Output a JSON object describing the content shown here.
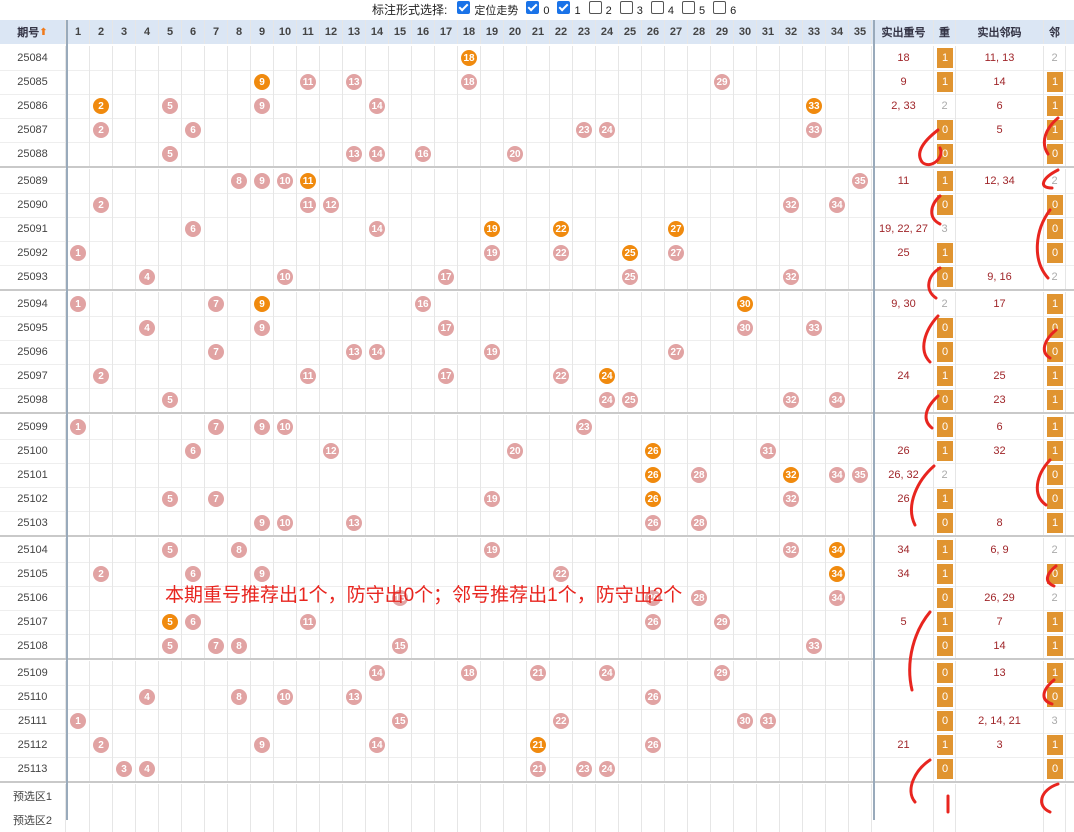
{
  "toolbar": {
    "title": "标注形式选择:",
    "options": [
      {
        "label": "定位走势",
        "checked": true
      },
      {
        "label": "0",
        "checked": true
      },
      {
        "label": "1",
        "checked": true
      },
      {
        "label": "2",
        "checked": false
      },
      {
        "label": "3",
        "checked": false
      },
      {
        "label": "4",
        "checked": false
      },
      {
        "label": "5",
        "checked": false
      },
      {
        "label": "6",
        "checked": false
      }
    ]
  },
  "header": {
    "period": "期号",
    "sort_icon": "sort-arrow-icon",
    "numbers": [
      "1",
      "2",
      "3",
      "4",
      "5",
      "6",
      "7",
      "8",
      "9",
      "10",
      "11",
      "12",
      "13",
      "14",
      "15",
      "16",
      "17",
      "18",
      "19",
      "20",
      "21",
      "22",
      "23",
      "24",
      "25",
      "26",
      "27",
      "28",
      "29",
      "30",
      "31",
      "32",
      "33",
      "34",
      "35"
    ],
    "repeat_nums": "实出重号",
    "repeat": "重",
    "adjacent_nums": "实出邻码",
    "adjacent": "邻"
  },
  "rows": [
    {
      "period": "25084",
      "balls": [
        18
      ],
      "hot": [
        18
      ],
      "repeat_nums": "18",
      "repeat": "1",
      "adjacent_nums": "11, 13",
      "adjacent": "2"
    },
    {
      "period": "25085",
      "balls": [
        9,
        11,
        13,
        18,
        29
      ],
      "hot": [
        9
      ],
      "repeat_nums": "9",
      "repeat": "1",
      "adjacent_nums": "14",
      "adjacent": "1"
    },
    {
      "period": "25086",
      "balls": [
        2,
        5,
        9,
        14,
        33
      ],
      "hot": [
        2,
        33
      ],
      "repeat_nums": "2, 33",
      "repeat": "2",
      "adjacent_nums": "6",
      "adjacent": "1"
    },
    {
      "period": "25087",
      "balls": [
        2,
        6,
        23,
        24,
        33
      ],
      "hot": [],
      "repeat_nums": "",
      "repeat": "0",
      "adjacent_nums": "5",
      "adjacent": "1"
    },
    {
      "period": "25088",
      "balls": [
        5,
        13,
        14,
        16,
        20
      ],
      "hot": [],
      "repeat_nums": "",
      "repeat": "0",
      "adjacent_nums": "",
      "adjacent": "0"
    },
    {
      "period": "25089",
      "balls": [
        8,
        9,
        10,
        11,
        35
      ],
      "hot": [
        11
      ],
      "repeat_nums": "11",
      "repeat": "1",
      "adjacent_nums": "12, 34",
      "adjacent": "2"
    },
    {
      "period": "25090",
      "balls": [
        2,
        11,
        12,
        32,
        34
      ],
      "hot": [],
      "repeat_nums": "",
      "repeat": "0",
      "adjacent_nums": "",
      "adjacent": "0"
    },
    {
      "period": "25091",
      "balls": [
        6,
        14,
        19,
        22,
        27
      ],
      "hot": [
        19,
        22,
        27
      ],
      "repeat_nums": "19, 22, 27",
      "repeat": "3",
      "adjacent_nums": "",
      "adjacent": "0"
    },
    {
      "period": "25092",
      "balls": [
        1,
        19,
        22,
        25,
        27
      ],
      "hot": [
        25
      ],
      "repeat_nums": "25",
      "repeat": "1",
      "adjacent_nums": "",
      "adjacent": "0"
    },
    {
      "period": "25093",
      "balls": [
        4,
        10,
        17,
        25,
        32
      ],
      "hot": [],
      "repeat_nums": "",
      "repeat": "0",
      "adjacent_nums": "9, 16",
      "adjacent": "2"
    },
    {
      "period": "25094",
      "balls": [
        1,
        7,
        9,
        16,
        30
      ],
      "hot": [
        9,
        30
      ],
      "repeat_nums": "9, 30",
      "repeat": "2",
      "adjacent_nums": "17",
      "adjacent": "1"
    },
    {
      "period": "25095",
      "balls": [
        4,
        9,
        17,
        30,
        33
      ],
      "hot": [],
      "repeat_nums": "",
      "repeat": "0",
      "adjacent_nums": "",
      "adjacent": "0"
    },
    {
      "period": "25096",
      "balls": [
        7,
        13,
        14,
        19,
        27
      ],
      "hot": [],
      "repeat_nums": "",
      "repeat": "0",
      "adjacent_nums": "",
      "adjacent": "0"
    },
    {
      "period": "25097",
      "balls": [
        2,
        11,
        17,
        22,
        24
      ],
      "hot": [
        24
      ],
      "repeat_nums": "24",
      "repeat": "1",
      "adjacent_nums": "25",
      "adjacent": "1"
    },
    {
      "period": "25098",
      "balls": [
        5,
        24,
        25,
        32,
        34
      ],
      "hot": [],
      "repeat_nums": "",
      "repeat": "0",
      "adjacent_nums": "23",
      "adjacent": "1"
    },
    {
      "period": "25099",
      "balls": [
        1,
        7,
        9,
        10,
        23
      ],
      "hot": [],
      "repeat_nums": "",
      "repeat": "0",
      "adjacent_nums": "6",
      "adjacent": "1"
    },
    {
      "period": "25100",
      "balls": [
        6,
        12,
        20,
        26,
        31
      ],
      "hot": [
        26
      ],
      "repeat_nums": "26",
      "repeat": "1",
      "adjacent_nums": "32",
      "adjacent": "1"
    },
    {
      "period": "25101",
      "balls": [
        26,
        28,
        32,
        34,
        35
      ],
      "hot": [
        26,
        32
      ],
      "repeat_nums": "26, 32",
      "repeat": "2",
      "adjacent_nums": "",
      "adjacent": "0"
    },
    {
      "period": "25102",
      "balls": [
        5,
        7,
        19,
        26,
        32
      ],
      "hot": [
        26
      ],
      "repeat_nums": "26",
      "repeat": "1",
      "adjacent_nums": "",
      "adjacent": "0"
    },
    {
      "period": "25103",
      "balls": [
        9,
        10,
        13,
        26,
        28
      ],
      "hot": [],
      "repeat_nums": "",
      "repeat": "0",
      "adjacent_nums": "8",
      "adjacent": "1"
    },
    {
      "period": "25104",
      "balls": [
        5,
        8,
        19,
        32,
        34
      ],
      "hot": [
        34
      ],
      "repeat_nums": "34",
      "repeat": "1",
      "adjacent_nums": "6, 9",
      "adjacent": "2"
    },
    {
      "period": "25105",
      "balls": [
        2,
        6,
        9,
        22,
        34
      ],
      "hot": [
        34
      ],
      "repeat_nums": "34",
      "repeat": "1",
      "adjacent_nums": "",
      "adjacent": "0"
    },
    {
      "period": "25106",
      "balls": [
        15,
        26,
        28,
        34
      ],
      "hot": [],
      "repeat_nums": "",
      "repeat": "0",
      "adjacent_nums": "26, 29",
      "adjacent": "2"
    },
    {
      "period": "25107",
      "balls": [
        5,
        6,
        11,
        26,
        29
      ],
      "hot": [
        5
      ],
      "repeat_nums": "5",
      "repeat": "1",
      "adjacent_nums": "7",
      "adjacent": "1"
    },
    {
      "period": "25108",
      "balls": [
        5,
        7,
        8,
        15,
        33
      ],
      "hot": [],
      "repeat_nums": "",
      "repeat": "0",
      "adjacent_nums": "14",
      "adjacent": "1"
    },
    {
      "period": "25109",
      "balls": [
        14,
        18,
        21,
        24,
        29
      ],
      "hot": [],
      "repeat_nums": "",
      "repeat": "0",
      "adjacent_nums": "13",
      "adjacent": "1"
    },
    {
      "period": "25110",
      "balls": [
        4,
        8,
        10,
        13,
        26
      ],
      "hot": [],
      "repeat_nums": "",
      "repeat": "0",
      "adjacent_nums": "",
      "adjacent": "0"
    },
    {
      "period": "25111",
      "balls": [
        1,
        15,
        22,
        30,
        31
      ],
      "hot": [],
      "repeat_nums": "",
      "repeat": "0",
      "adjacent_nums": "2, 14, 21",
      "adjacent": "3"
    },
    {
      "period": "25112",
      "balls": [
        2,
        9,
        14,
        21,
        26
      ],
      "hot": [
        21
      ],
      "repeat_nums": "21",
      "repeat": "1",
      "adjacent_nums": "3",
      "adjacent": "1"
    },
    {
      "period": "25113",
      "balls": [
        3,
        4,
        21,
        23,
        24
      ],
      "hot": [],
      "repeat_nums": "",
      "repeat": "0",
      "adjacent_nums": "",
      "adjacent": "0"
    }
  ],
  "footer_rows": [
    "预选区1",
    "预选区2"
  ],
  "annotation": "本期重号推荐出1个，防守出0个；邻号推荐出1个，防守出2个",
  "colors": {
    "ball_normal": "#e1a3a3",
    "ball_hot": "#f08a0e",
    "ink": "#e8251f",
    "orange_box": "#e09430"
  }
}
